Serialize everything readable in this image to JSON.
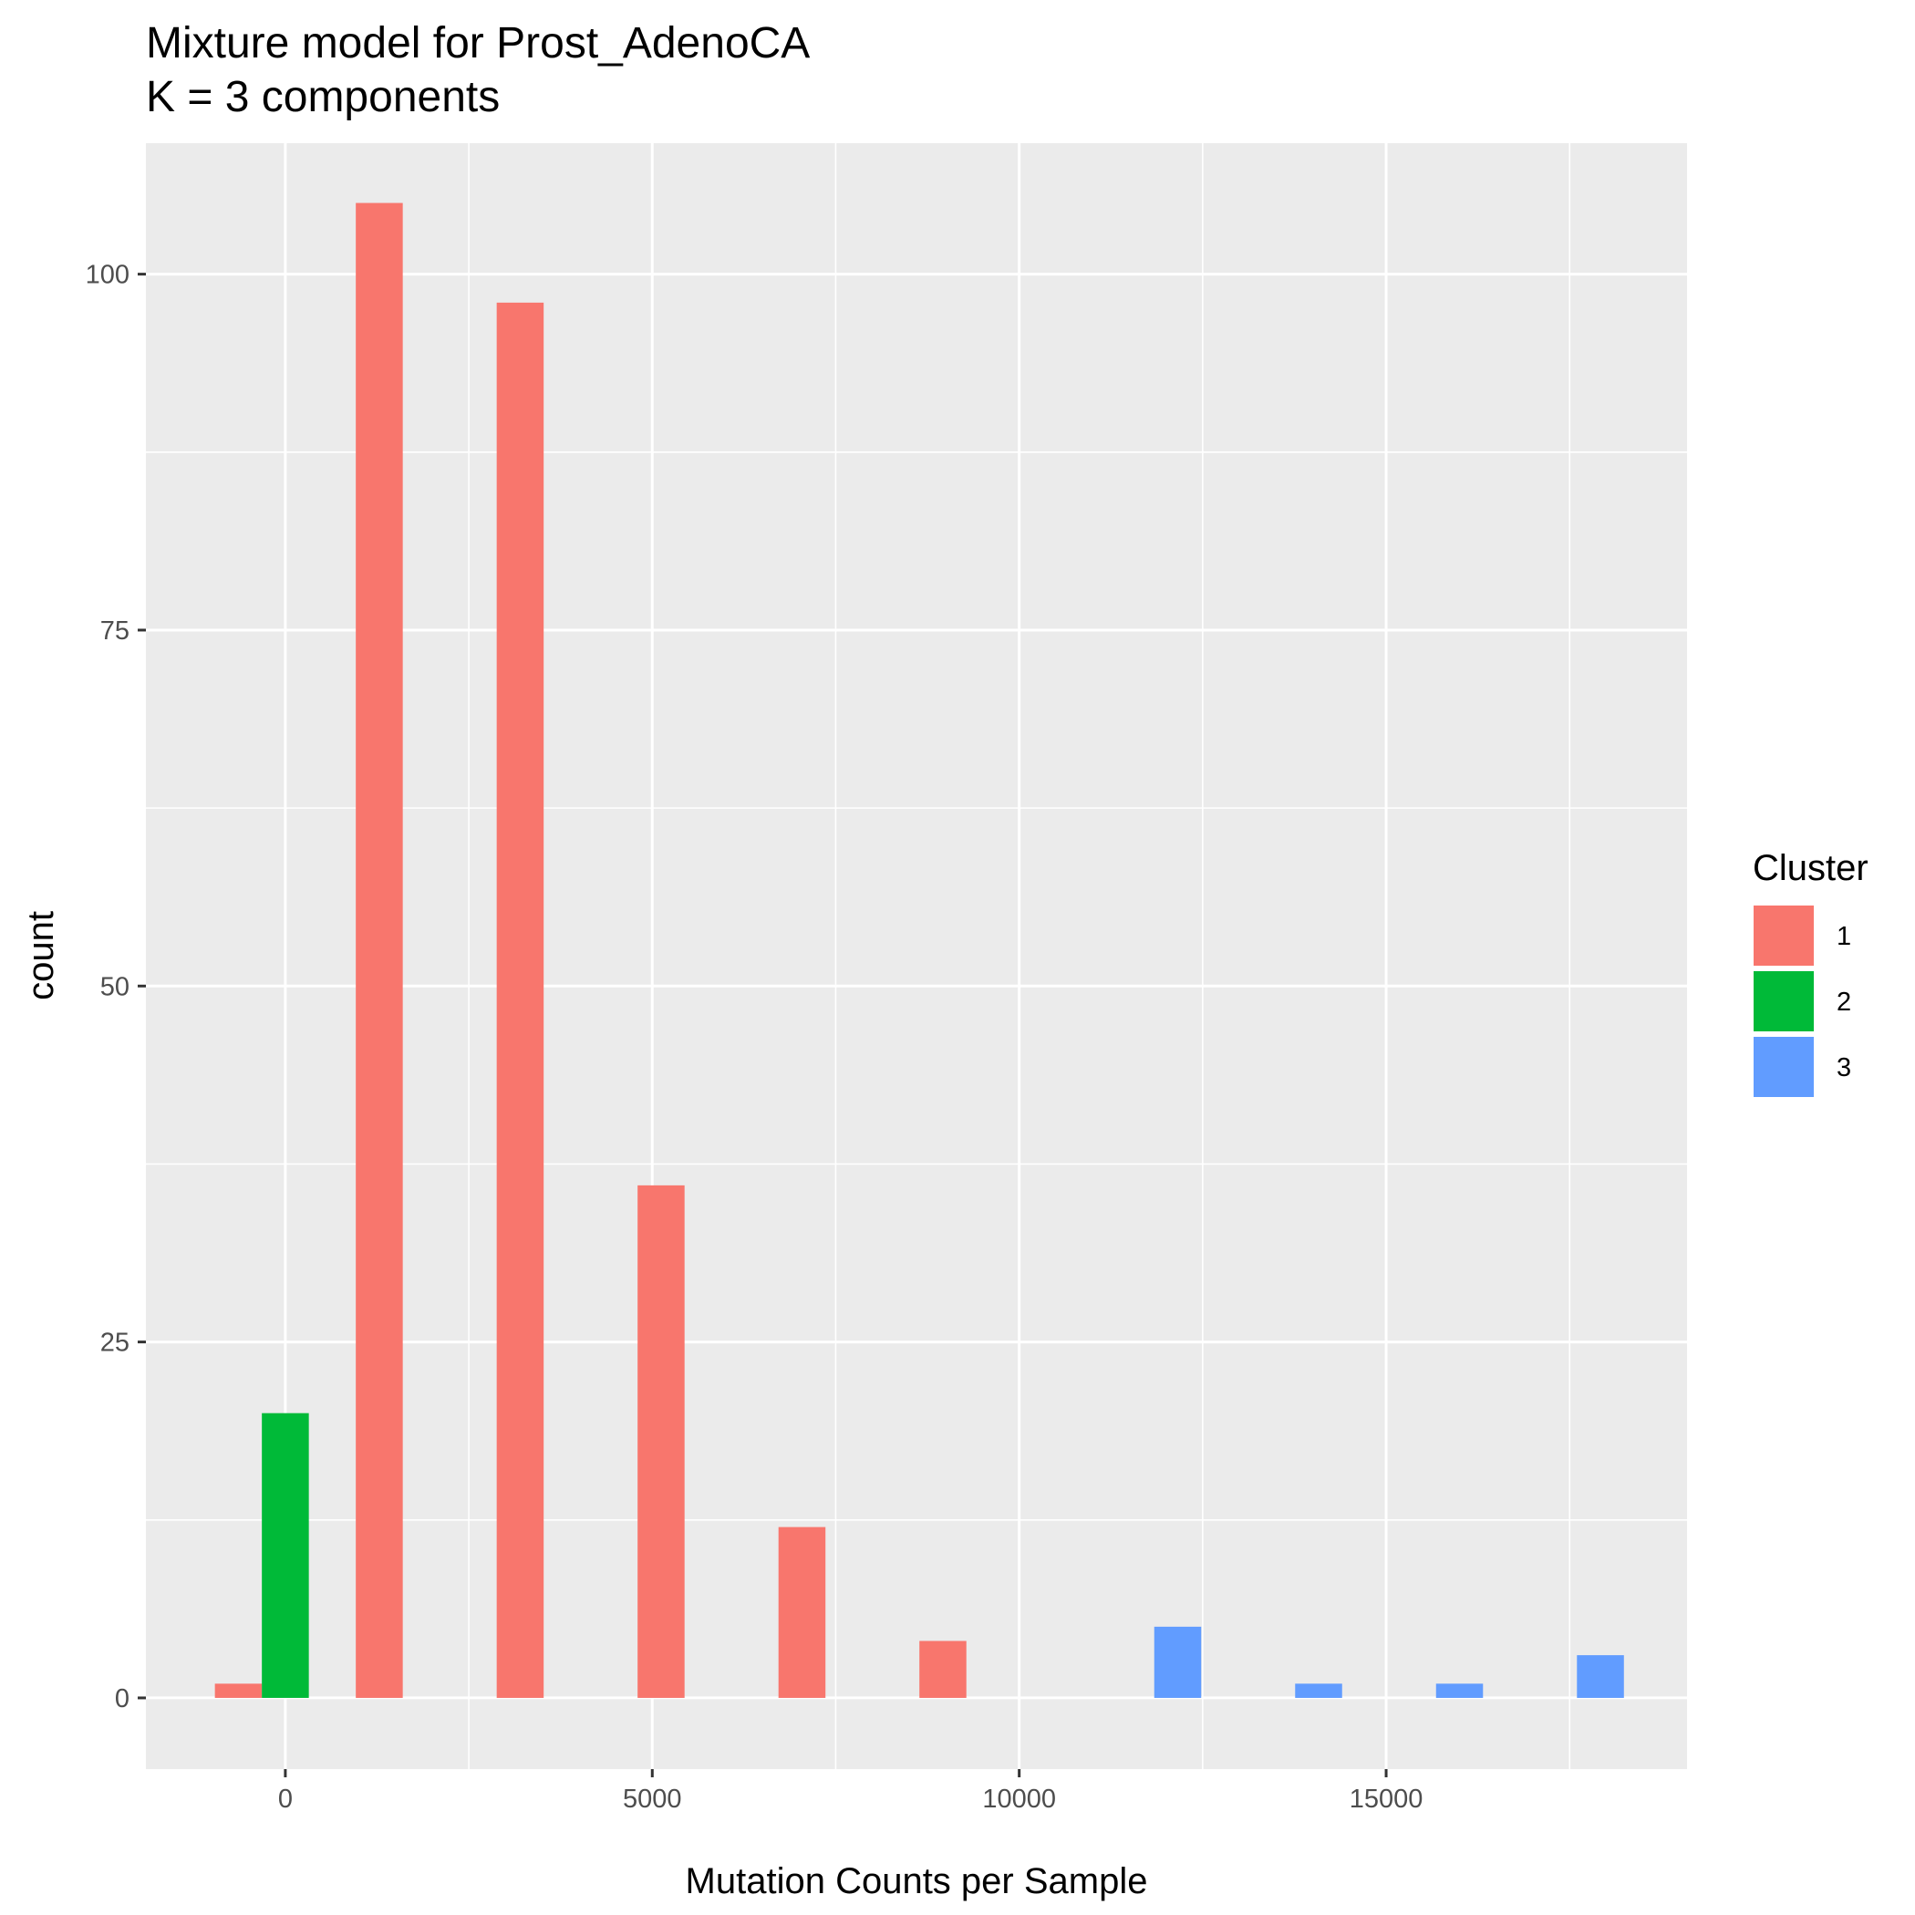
{
  "chart_data": {
    "type": "bar",
    "title": "Mixture model for Prost_AdenoCA",
    "subtitle": "K = 3 components",
    "xlabel": "Mutation Counts per Sample",
    "ylabel": "count",
    "xlim": [
      -1900,
      19100
    ],
    "ylim": [
      -5,
      109.2
    ],
    "x_ticks": [
      0,
      5000,
      10000,
      15000
    ],
    "x_tick_labels": [
      "0",
      "5000",
      "10000",
      "15000"
    ],
    "y_ticks": [
      0,
      25,
      50,
      75,
      100
    ],
    "y_tick_labels": [
      "0",
      "25",
      "50",
      "75",
      "100"
    ],
    "grid": true,
    "legend": {
      "title": "Cluster",
      "position": "right",
      "entries": [
        {
          "label": "1",
          "color": "#F8766D"
        },
        {
          "label": "2",
          "color": "#00BA38"
        },
        {
          "label": "3",
          "color": "#619CFF"
        }
      ]
    },
    "bin_width": 640,
    "series": [
      {
        "name": "1",
        "color": "#F8766D",
        "points": [
          {
            "x": -640,
            "y": 1
          },
          {
            "x": 1280,
            "y": 105
          },
          {
            "x": 3200,
            "y": 98
          },
          {
            "x": 5120,
            "y": 36
          },
          {
            "x": 7040,
            "y": 12
          },
          {
            "x": 8960,
            "y": 4
          }
        ]
      },
      {
        "name": "2",
        "color": "#00BA38",
        "points": [
          {
            "x": 0,
            "y": 20
          }
        ]
      },
      {
        "name": "3",
        "color": "#619CFF",
        "points": [
          {
            "x": 12160,
            "y": 5
          },
          {
            "x": 14080,
            "y": 1
          },
          {
            "x": 16000,
            "y": 1
          },
          {
            "x": 17920,
            "y": 3
          }
        ]
      }
    ]
  }
}
